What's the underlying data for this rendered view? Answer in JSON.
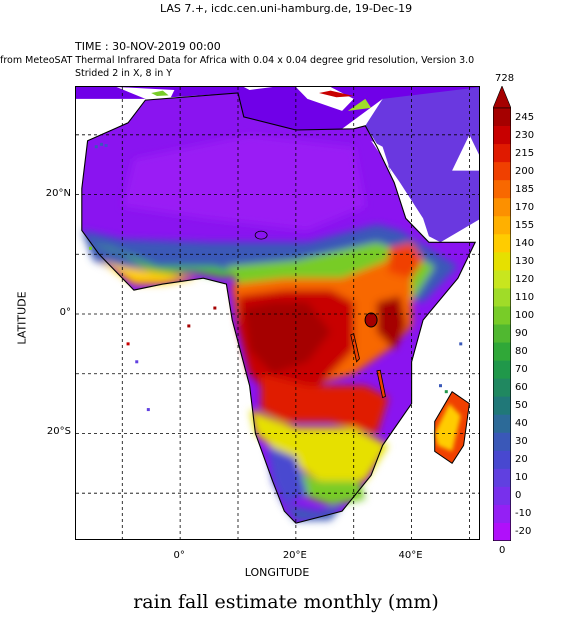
{
  "header": "LAS 7.+, icdc.cen.uni-hamburg.de, 19-Dec-19",
  "time_line": "TIME : 30-NOV-2019 00:00",
  "description": "from MeteoSAT Thermal Infrared Data for Africa with 0.04 x 0.04 degree grid resolution, Version 3.0",
  "stride_note": "Strided 2 in X, 8 in Y",
  "title": "rain fall estimate monthly (mm)",
  "map": {
    "xlabel": "LONGITUDE",
    "ylabel": "LATITUDE",
    "lon_range": [
      -18,
      52
    ],
    "lat_range": [
      -38,
      38
    ],
    "lon_ticks": [
      {
        "value": -10,
        "label": ""
      },
      {
        "value": 0,
        "label": "0°"
      },
      {
        "value": 10,
        "label": ""
      },
      {
        "value": 20,
        "label": "20°E"
      },
      {
        "value": 30,
        "label": ""
      },
      {
        "value": 40,
        "label": "40°E"
      },
      {
        "value": 50,
        "label": ""
      }
    ],
    "lat_ticks": [
      {
        "value": 30,
        "label": ""
      },
      {
        "value": 20,
        "label": "20°N"
      },
      {
        "value": 10,
        "label": ""
      },
      {
        "value": 0,
        "label": "0°"
      },
      {
        "value": -10,
        "label": ""
      },
      {
        "value": -20,
        "label": "20°S"
      },
      {
        "value": -30,
        "label": ""
      }
    ],
    "grid": true,
    "colors": {
      "frame": "#000000",
      "background": "#ffffff",
      "mediterranean_coast": "#7000e8",
      "dry_land": "#8a14f0",
      "desert_core": "#9a1cf5",
      "arabia": "#6a38e0"
    }
  },
  "colorbar": {
    "top_value": "728",
    "bottom_value": "0",
    "levels": [
      "245",
      "230",
      "215",
      "200",
      "185",
      "170",
      "155",
      "140",
      "130",
      "120",
      "110",
      "100",
      "90",
      "80",
      "70",
      "60",
      "50",
      "40",
      "30",
      "20",
      "10",
      "0",
      "-10",
      "-20"
    ],
    "colors": [
      "#a50000",
      "#c80000",
      "#e01a00",
      "#f04000",
      "#f86800",
      "#fc9000",
      "#ffb000",
      "#ffcc00",
      "#e6e000",
      "#c8e61e",
      "#a0dc28",
      "#78cc28",
      "#50b830",
      "#30a838",
      "#20984a",
      "#208860",
      "#207878",
      "#2c6a98",
      "#3a58b8",
      "#4848d0",
      "#6040e0",
      "#7830ec",
      "#9420f4",
      "#b010fa"
    ],
    "arrow_color": "#a50000"
  }
}
